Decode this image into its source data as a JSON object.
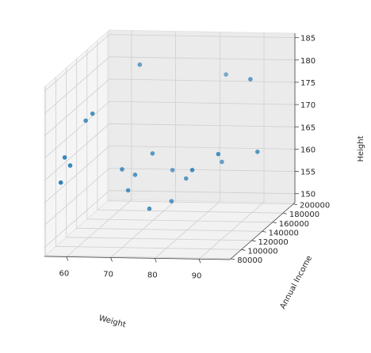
{
  "chart_data": {
    "type": "scatter",
    "projection": "3d",
    "xlabel": "Weight",
    "ylabel": "Annual Income",
    "zlabel": "Height",
    "xlim": [
      55,
      97
    ],
    "ylim": [
      78000,
      203000
    ],
    "zlim": [
      148,
      186
    ],
    "x_ticks": [
      "60",
      "70",
      "80",
      "90"
    ],
    "y_ticks": [
      "80000",
      "100000",
      "120000",
      "140000",
      "160000",
      "180000",
      "200000"
    ],
    "z_ticks": [
      "150",
      "155",
      "160",
      "165",
      "170",
      "175",
      "180",
      "185"
    ],
    "grid": true,
    "marker_color": "#1f77b4",
    "points": [
      {
        "x": 58,
        "y": 84000,
        "z": 164
      },
      {
        "x": 57,
        "y": 100000,
        "z": 168
      },
      {
        "x": 58,
        "y": 102000,
        "z": 166
      },
      {
        "x": 58,
        "y": 132000,
        "z": 173
      },
      {
        "x": 60,
        "y": 128000,
        "z": 175
      },
      {
        "x": 66,
        "y": 134000,
        "z": 162
      },
      {
        "x": 67,
        "y": 137000,
        "z": 157
      },
      {
        "x": 66,
        "y": 168000,
        "z": 182
      },
      {
        "x": 68,
        "y": 142000,
        "z": 160
      },
      {
        "x": 71,
        "y": 150000,
        "z": 164
      },
      {
        "x": 73,
        "y": 127000,
        "z": 154
      },
      {
        "x": 74,
        "y": 163000,
        "z": 159
      },
      {
        "x": 76,
        "y": 144000,
        "z": 154
      },
      {
        "x": 78,
        "y": 155000,
        "z": 158
      },
      {
        "x": 84,
        "y": 116000,
        "z": 164
      },
      {
        "x": 82,
        "y": 198000,
        "z": 177
      },
      {
        "x": 84,
        "y": 173000,
        "z": 160
      },
      {
        "x": 88,
        "y": 132000,
        "z": 166
      },
      {
        "x": 95,
        "y": 148000,
        "z": 165
      },
      {
        "x": 92,
        "y": 160000,
        "z": 180
      }
    ]
  }
}
